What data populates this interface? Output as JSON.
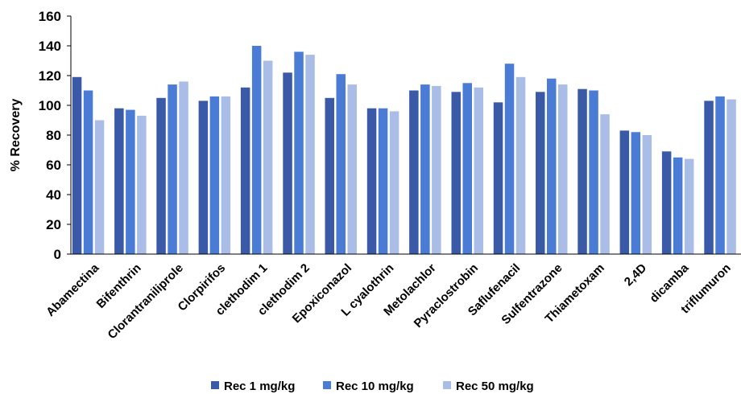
{
  "chart_data": {
    "type": "bar",
    "title": "",
    "xlabel": "",
    "ylabel": "% Recovery",
    "ylim": [
      0,
      160
    ],
    "yticks": [
      0,
      20,
      40,
      60,
      80,
      100,
      120,
      140,
      160
    ],
    "grid": false,
    "legend_position": "bottom",
    "categories": [
      "Abamectina",
      "Bifenthrin",
      "Clorantraniliprole",
      "Clorpirifos",
      "clethodim 1",
      "clethodim 2",
      "Epoxiconazol",
      "L cyalothrin",
      "Metolachlor",
      "Pyraclostrobin",
      "Saflufenacil",
      "Sulfentrazone",
      "Thiametoxam",
      "2,4D",
      "dicamba",
      "triflumuron"
    ],
    "series": [
      {
        "name": "Rec 1 mg/kg",
        "color": "#3a5aa8",
        "values": [
          119,
          98,
          105,
          103,
          112,
          122,
          105,
          98,
          110,
          109,
          102,
          109,
          111,
          83,
          69,
          103
        ]
      },
      {
        "name": "Rec 10 mg/kg",
        "color": "#4a7bd5",
        "values": [
          110,
          97,
          114,
          106,
          140,
          136,
          121,
          98,
          114,
          115,
          128,
          118,
          110,
          82,
          65,
          106
        ]
      },
      {
        "name": "Rec 50 mg/kg",
        "color": "#a9bde6",
        "values": [
          90,
          93,
          116,
          106,
          130,
          134,
          114,
          96,
          113,
          112,
          119,
          114,
          94,
          80,
          64,
          104
        ]
      }
    ]
  }
}
